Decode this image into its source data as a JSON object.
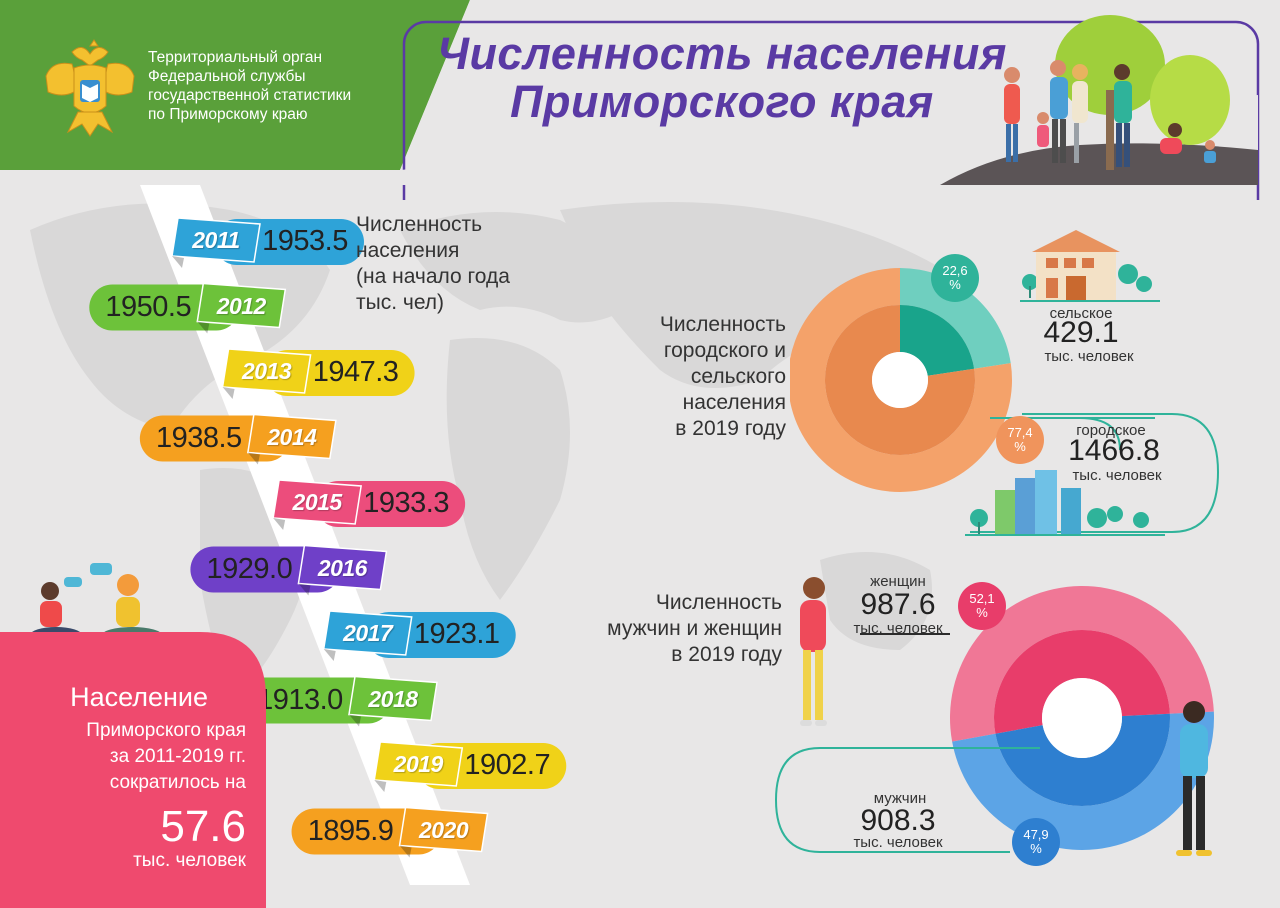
{
  "header": {
    "org_name": "Территориальный орган\nФедеральной службы\nгосударственной статистики\nпо Приморскому краю",
    "title": "Численность населения\nПриморского края",
    "emblem_icon": "double-headed-eagle-emblem"
  },
  "colors": {
    "green": "#5aa03a",
    "purple": "#5a3aa4",
    "orange": "#f4a261",
    "teal": "#2fb39a",
    "pink": "#ef4a6e",
    "blue": "#3d86d6"
  },
  "timeline": {
    "label": "Численность\nнаселения\n(на начало года\n тыс. чел)",
    "items": [
      {
        "year": "2011",
        "value": "1953.5",
        "color": "#2ea3d8"
      },
      {
        "year": "2012",
        "value": "1950.5",
        "color": "#6dc23a"
      },
      {
        "year": "2013",
        "value": "1947.3",
        "color": "#f0d218"
      },
      {
        "year": "2014",
        "value": "1938.5",
        "color": "#f5a01f"
      },
      {
        "year": "2015",
        "value": "1933.3",
        "color": "#ec4d7c"
      },
      {
        "year": "2016",
        "value": "1929.0",
        "color": "#6f40c8"
      },
      {
        "year": "2017",
        "value": "1923.1",
        "color": "#2ea3d8"
      },
      {
        "year": "2018",
        "value": "1913.0",
        "color": "#6dc23a"
      },
      {
        "year": "2019",
        "value": "1902.7",
        "color": "#f0d218"
      },
      {
        "year": "2020",
        "value": "1895.9",
        "color": "#f5a01f"
      }
    ]
  },
  "summary": {
    "heading": "Население",
    "text": "Приморского края\nза 2011-2019 гг.\nсократилось на",
    "value": "57.6",
    "unit": "тыс. человек"
  },
  "urban_rural": {
    "label": "Численность\nгородского и\nсельского\nнаселения\nв 2019 году",
    "rural_label": "сельское",
    "rural_value": "429.1",
    "rural_unit": "тыс. человек",
    "rural_pct": "22,6\n%",
    "urban_label": "городское",
    "urban_value": "1466.8",
    "urban_unit": "тыс. человек",
    "urban_pct": "77,4\n%"
  },
  "gender": {
    "label": "Численность\nмужчин и женщин\nв 2019 году",
    "women_label": "женщин",
    "women_value": "987.6",
    "women_unit": "тыс. человек",
    "women_pct": "52,1\n%",
    "men_label": "мужчин",
    "men_value": "908.3",
    "men_unit": "тыс. человек",
    "men_pct": "47,9\n%"
  },
  "chart_data": [
    {
      "type": "line",
      "title": "Численность населения (на начало года тыс. чел)",
      "x": [
        "2011",
        "2012",
        "2013",
        "2014",
        "2015",
        "2016",
        "2017",
        "2018",
        "2019",
        "2020"
      ],
      "values": [
        1953.5,
        1950.5,
        1947.3,
        1938.5,
        1933.3,
        1929.0,
        1923.1,
        1913.0,
        1902.7,
        1895.9
      ]
    },
    {
      "type": "pie",
      "title": "Численность городского и сельского населения в 2019 году",
      "categories": [
        "сельское",
        "городское"
      ],
      "values": [
        22.6,
        77.4
      ],
      "absolute": [
        429.1,
        1466.8
      ]
    },
    {
      "type": "pie",
      "title": "Численность мужчин и женщин в 2019 году",
      "categories": [
        "женщин",
        "мужчин"
      ],
      "values": [
        52.1,
        47.9
      ],
      "absolute": [
        987.6,
        908.3
      ]
    }
  ]
}
